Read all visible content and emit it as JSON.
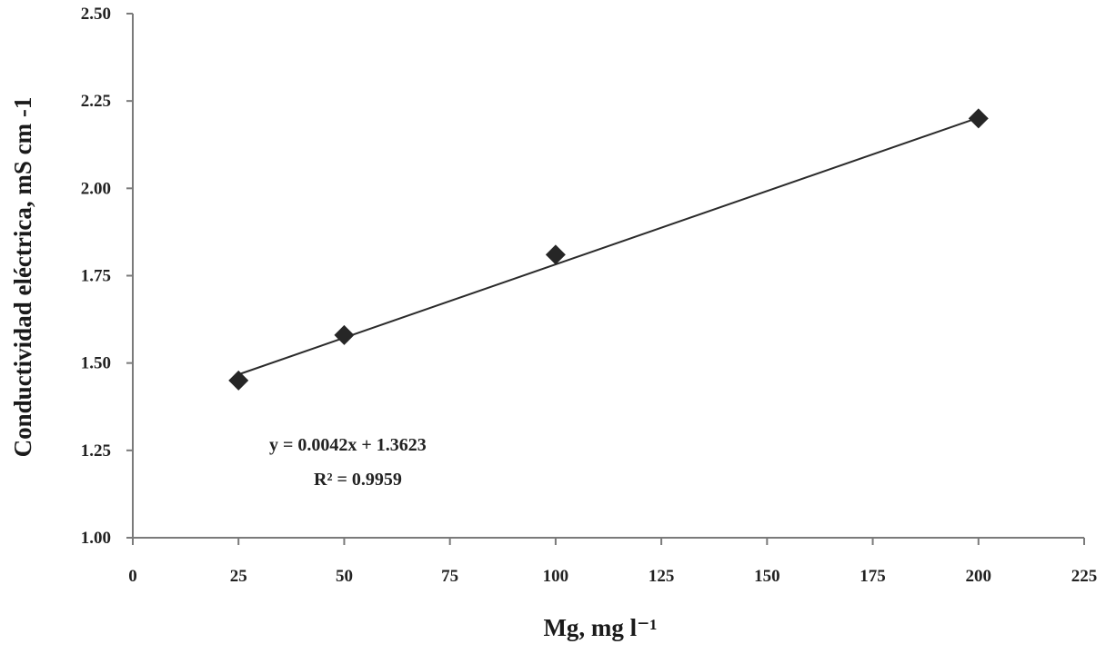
{
  "chart_data": {
    "type": "scatter",
    "title": "",
    "xlabel": "Mg, mg l⁻¹",
    "ylabel": "Conductividad eléctrica, mS cm -1",
    "xlim": [
      0,
      225
    ],
    "ylim": [
      1.0,
      2.5
    ],
    "x_ticks": [
      "0",
      "25",
      "50",
      "75",
      "100",
      "125",
      "150",
      "175",
      "200",
      "225"
    ],
    "y_ticks": [
      "1.00",
      "1.25",
      "1.50",
      "1.75",
      "2.00",
      "2.25",
      "2.50"
    ],
    "grid": false,
    "legend": "none",
    "marker": "diamond",
    "series": [
      {
        "x": [
          25,
          50,
          100,
          200
        ],
        "y": [
          1.45,
          1.58,
          1.81,
          2.2
        ]
      }
    ],
    "trendline": {
      "type": "linear",
      "slope": 0.0042,
      "intercept": 1.3623,
      "x_range": [
        25,
        200
      ]
    },
    "annotations": {
      "equation": "y = 0.0042x  + 1.3623",
      "r_squared": "R² = 0.9959"
    },
    "colors": {
      "axis": "#7a7a7a",
      "marker": "#262626",
      "trendline": "#2b2b2b",
      "text": "#222222"
    }
  }
}
